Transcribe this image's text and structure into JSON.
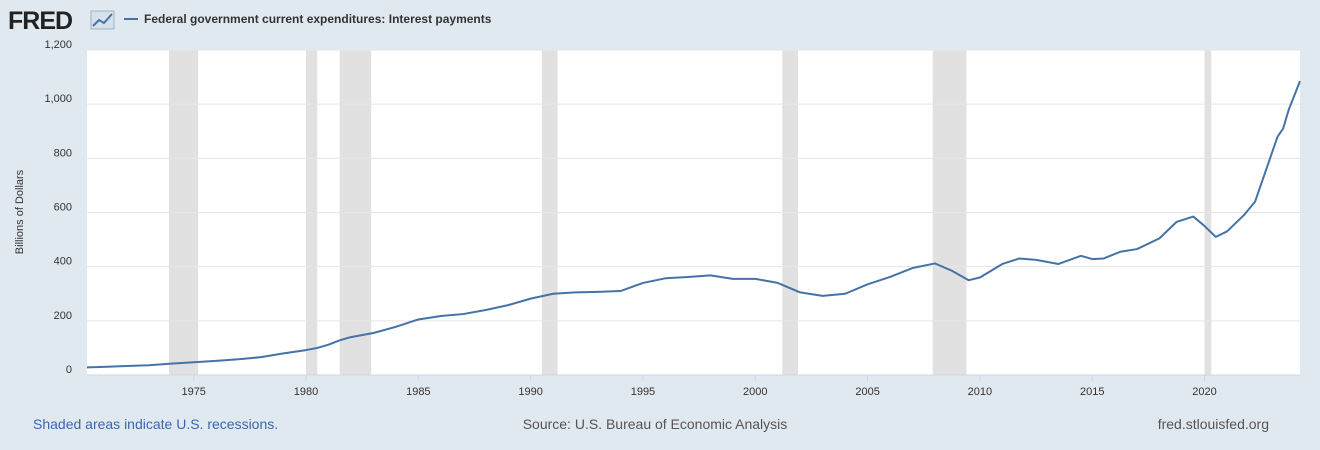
{
  "chart_data": {
    "type": "line",
    "logo": "FRED",
    "ylabel": "Billions of Dollars",
    "note": "Shaded areas indicate U.S. recessions.",
    "source": "Source: U.S. Bureau of Economic Analysis",
    "site": "fred.stlouisfed.org",
    "x": [
      1970.25,
      1971,
      1972,
      1973,
      1974,
      1975,
      1976,
      1977,
      1978,
      1979,
      1980,
      1980.5,
      1981,
      1981.5,
      1982,
      1983,
      1984,
      1985,
      1986,
      1987,
      1988,
      1989,
      1990,
      1991,
      1992,
      1993,
      1994,
      1995,
      1996,
      1997,
      1998,
      1999,
      2000,
      2001,
      2002,
      2003,
      2004,
      2005,
      2006,
      2007,
      2008,
      2008.75,
      2009.5,
      2010,
      2011,
      2011.75,
      2012.5,
      2013.5,
      2014.5,
      2015,
      2015.5,
      2016.25,
      2017,
      2018,
      2018.75,
      2019.5,
      2020,
      2020.5,
      2021,
      2021.75,
      2022.25,
      2022.75,
      2023.25,
      2023.5,
      2023.75,
      2024.25
    ],
    "series": [
      {
        "name": "Federal government current expenditures: Interest payments",
        "color": "#4572a7",
        "values": [
          28,
          30,
          33,
          36,
          42,
          47,
          52,
          58,
          66,
          80,
          92,
          100,
          112,
          128,
          140,
          155,
          178,
          205,
          218,
          225,
          240,
          258,
          282,
          300,
          305,
          307,
          310,
          340,
          357,
          362,
          368,
          355,
          355,
          340,
          305,
          292,
          300,
          335,
          362,
          395,
          412,
          385,
          350,
          360,
          410,
          430,
          425,
          410,
          440,
          428,
          430,
          455,
          465,
          505,
          565,
          585,
          550,
          510,
          530,
          590,
          640,
          760,
          880,
          910,
          980,
          1085
        ]
      }
    ],
    "recessions": [
      [
        1973.9,
        1975.2
      ],
      [
        1980.0,
        1980.5
      ],
      [
        1981.5,
        1982.9
      ],
      [
        1990.5,
        1991.2
      ],
      [
        2001.2,
        2001.9
      ],
      [
        2007.9,
        2009.4
      ],
      [
        2020.0,
        2020.3
      ]
    ],
    "xlim": [
      1970.25,
      2024.25
    ],
    "xticks": [
      1975,
      1980,
      1985,
      1990,
      1995,
      2000,
      2005,
      2010,
      2015,
      2020
    ],
    "ylim": [
      0,
      1200
    ],
    "yticks": [
      0,
      200,
      400,
      600,
      800,
      {
        "value": 1000,
        "label": "1,000"
      },
      {
        "value": 1200,
        "label": "1,200"
      }
    ],
    "grid": true
  }
}
